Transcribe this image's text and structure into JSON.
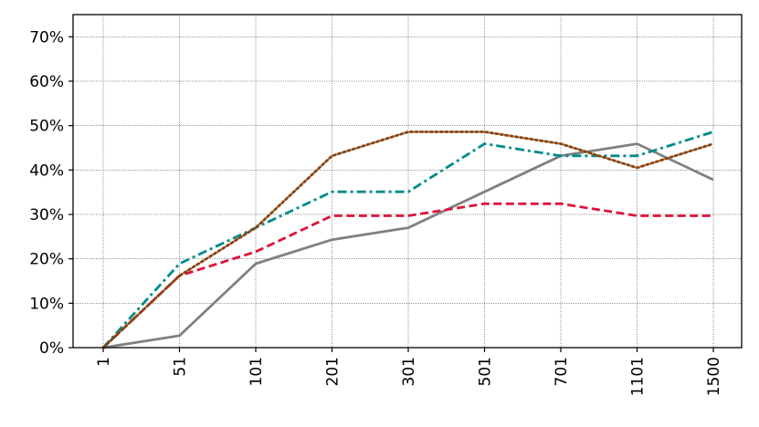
{
  "chart_data": {
    "type": "line",
    "categories": [
      "1",
      "51",
      "101",
      "201",
      "301",
      "501",
      "701",
      "1101",
      "1500"
    ],
    "ylim": [
      0,
      75
    ],
    "yticks": [
      {
        "value": 0,
        "label": "0%"
      },
      {
        "value": 10,
        "label": "10%"
      },
      {
        "value": 20,
        "label": "20%"
      },
      {
        "value": 30,
        "label": "30%"
      },
      {
        "value": 40,
        "label": "40%"
      },
      {
        "value": 50,
        "label": "50%"
      },
      {
        "value": 60,
        "label": "60%"
      },
      {
        "value": 70,
        "label": "70%"
      }
    ],
    "grid": true,
    "series": [
      {
        "color": "#808080",
        "style": "solid",
        "values": [
          0,
          2.7,
          18.9,
          24.3,
          27.0,
          35.1,
          43.2,
          45.9,
          37.8
        ]
      },
      {
        "color": "#DC143C",
        "style": "dashed",
        "values": [
          0,
          16.2,
          21.6,
          29.7,
          29.7,
          32.4,
          32.4,
          29.7,
          29.7
        ]
      },
      {
        "color": "#008B8B",
        "style": "dashdot",
        "values": [
          0,
          18.9,
          27.0,
          35.1,
          35.1,
          45.9,
          43.2,
          43.2,
          48.6
        ]
      },
      {
        "color": "#8B4513",
        "style": "dotted",
        "values": [
          0,
          16.2,
          27.0,
          43.2,
          48.6,
          48.6,
          45.9,
          40.5,
          45.9
        ]
      }
    ]
  }
}
